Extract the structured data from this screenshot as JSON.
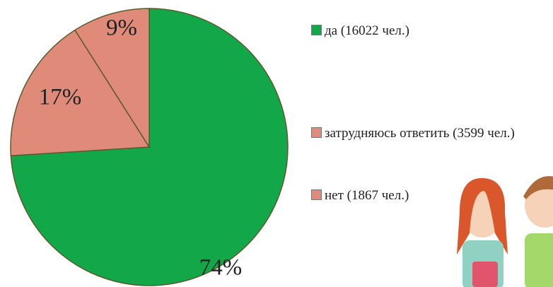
{
  "chart_data": {
    "type": "pie",
    "categories": [
      "да (16022 чел.)",
      "затрудняюсь ответить (3599 чел.)",
      "нет (1867 чел.)"
    ],
    "values": [
      74,
      17,
      9
    ],
    "value_labels": [
      "74%",
      "17%",
      "9%"
    ],
    "colors": [
      "#12a84a",
      "#e08b79",
      "#e08b79"
    ]
  }
}
